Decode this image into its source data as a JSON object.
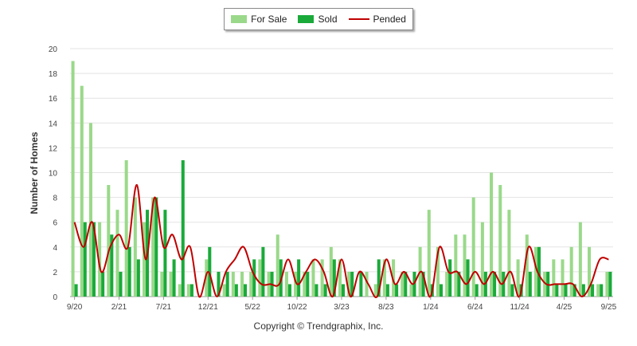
{
  "chart_data": {
    "type": "bar",
    "ylabel": "Number of Homes",
    "ylim": [
      0,
      20
    ],
    "yticks": [
      0,
      2,
      4,
      6,
      8,
      10,
      12,
      14,
      16,
      18,
      20
    ],
    "xtick_labels": [
      "9/20",
      "2/21",
      "7/21",
      "12/21",
      "5/22",
      "10/22",
      "3/23",
      "8/23",
      "1/24",
      "6/24",
      "11/24",
      "4/25",
      "9/25"
    ],
    "categories": [
      "9/20",
      "10/20",
      "11/20",
      "12/20",
      "1/21",
      "2/21",
      "3/21",
      "4/21",
      "5/21",
      "6/21",
      "7/21",
      "8/21",
      "9/21",
      "10/21",
      "11/21",
      "12/21",
      "1/22",
      "2/22",
      "3/22",
      "4/22",
      "5/22",
      "6/22",
      "7/22",
      "8/22",
      "9/22",
      "10/22",
      "11/22",
      "12/22",
      "1/23",
      "2/23",
      "3/23",
      "4/23",
      "5/23",
      "6/23",
      "7/23",
      "8/23",
      "9/23",
      "10/23",
      "11/23",
      "12/23",
      "1/24",
      "2/24",
      "3/24",
      "4/24",
      "5/24",
      "6/24",
      "7/24",
      "8/24",
      "9/24",
      "10/24",
      "11/24",
      "12/24",
      "1/25",
      "2/25",
      "3/25",
      "4/25",
      "5/25",
      "6/25",
      "7/25",
      "8/25",
      "9/25"
    ],
    "series": [
      {
        "name": "For Sale",
        "type": "bar",
        "color": "#9ad98a",
        "values": [
          19,
          17,
          14,
          6,
          9,
          7,
          11,
          8,
          6,
          8,
          2,
          2,
          1,
          1,
          0,
          3,
          0,
          1,
          2,
          2,
          2,
          3,
          2,
          5,
          2,
          2,
          2,
          3,
          3,
          4,
          3,
          2,
          0,
          2,
          1,
          3,
          3,
          2,
          1,
          4,
          7,
          4,
          2,
          5,
          5,
          8,
          6,
          10,
          9,
          7,
          3,
          5,
          4,
          2,
          3,
          3,
          4,
          6,
          4,
          1,
          2
        ]
      },
      {
        "name": "Sold",
        "type": "bar",
        "color": "#1aaa3a",
        "values": [
          1,
          6,
          6,
          2,
          5,
          2,
          4,
          3,
          7,
          8,
          7,
          3,
          11,
          1,
          0,
          4,
          2,
          2,
          1,
          1,
          3,
          4,
          2,
          3,
          1,
          3,
          2,
          1,
          1,
          3,
          1,
          2,
          2,
          0,
          3,
          1,
          1,
          2,
          2,
          2,
          1,
          1,
          3,
          2,
          3,
          1,
          2,
          2,
          2,
          1,
          1,
          2,
          4,
          2,
          1,
          1,
          1,
          1,
          1,
          1,
          2
        ]
      },
      {
        "name": "Pended",
        "type": "line",
        "color": "#c00000",
        "values": [
          6,
          4,
          6,
          2,
          4,
          5,
          4,
          9,
          3,
          8,
          4,
          5,
          3,
          4,
          0,
          2,
          0,
          2,
          3,
          4,
          2,
          1,
          1,
          1,
          3,
          1,
          2,
          3,
          2,
          0,
          3,
          0,
          2,
          1,
          0,
          3,
          1,
          2,
          1,
          2,
          0,
          4,
          2,
          2,
          1,
          2,
          1,
          2,
          1,
          2,
          0,
          4,
          2,
          1,
          1,
          1,
          1,
          0,
          1,
          3,
          3
        ]
      }
    ],
    "legend_position": "top-center",
    "grid": "horizontal"
  },
  "legend": {
    "for_sale": "For Sale",
    "sold": "Sold",
    "pended": "Pended"
  },
  "colors": {
    "for_sale": "#9ad98a",
    "sold": "#1aaa3a",
    "pended": "#c00000"
  },
  "footer": {
    "copyright": "Copyright © Trendgraphix, Inc."
  }
}
